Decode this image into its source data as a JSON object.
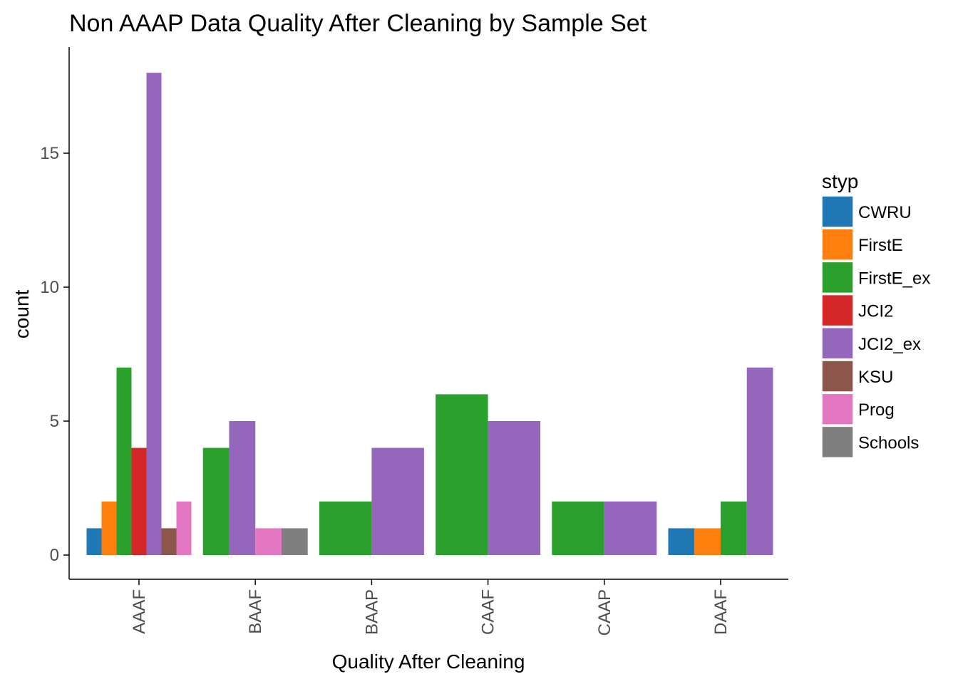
{
  "chart_data": {
    "type": "bar",
    "title": "Non AAAP Data Quality After Cleaning by Sample Set",
    "xlabel": "Quality After Cleaning",
    "ylabel": "count",
    "ylim": [
      0,
      18
    ],
    "yticks": [
      0,
      5,
      10,
      15
    ],
    "grid": false,
    "legend_position": "right",
    "legend_title": "styp",
    "series_names": [
      "CWRU",
      "FirstE",
      "FirstE_ex",
      "JCI2",
      "JCI2_ex",
      "KSU",
      "Prog",
      "Schools"
    ],
    "series_colors": [
      "#1f77b4",
      "#ff7f0e",
      "#2ca02c",
      "#d62728",
      "#9467bd",
      "#8c564b",
      "#e377c2",
      "#7f7f7f"
    ],
    "categories": [
      {
        "name": "AAAF",
        "bars": [
          {
            "series": "CWRU",
            "value": 1
          },
          {
            "series": "FirstE",
            "value": 2
          },
          {
            "series": "FirstE_ex",
            "value": 7
          },
          {
            "series": "JCI2",
            "value": 4
          },
          {
            "series": "JCI2_ex",
            "value": 18
          },
          {
            "series": "KSU",
            "value": 1
          },
          {
            "series": "Prog",
            "value": 2
          }
        ]
      },
      {
        "name": "BAAF",
        "bars": [
          {
            "series": "FirstE_ex",
            "value": 4
          },
          {
            "series": "JCI2_ex",
            "value": 5
          },
          {
            "series": "Prog",
            "value": 1
          },
          {
            "series": "Schools",
            "value": 1
          }
        ]
      },
      {
        "name": "BAAP",
        "bars": [
          {
            "series": "FirstE_ex",
            "value": 2
          },
          {
            "series": "JCI2_ex",
            "value": 4
          }
        ]
      },
      {
        "name": "CAAF",
        "bars": [
          {
            "series": "FirstE_ex",
            "value": 6
          },
          {
            "series": "JCI2_ex",
            "value": 5
          }
        ]
      },
      {
        "name": "CAAP",
        "bars": [
          {
            "series": "FirstE_ex",
            "value": 2
          },
          {
            "series": "JCI2_ex",
            "value": 2
          }
        ]
      },
      {
        "name": "DAAF",
        "bars": [
          {
            "series": "CWRU",
            "value": 1
          },
          {
            "series": "FirstE",
            "value": 1
          },
          {
            "series": "FirstE_ex",
            "value": 2
          },
          {
            "series": "JCI2_ex",
            "value": 7
          }
        ]
      }
    ]
  }
}
